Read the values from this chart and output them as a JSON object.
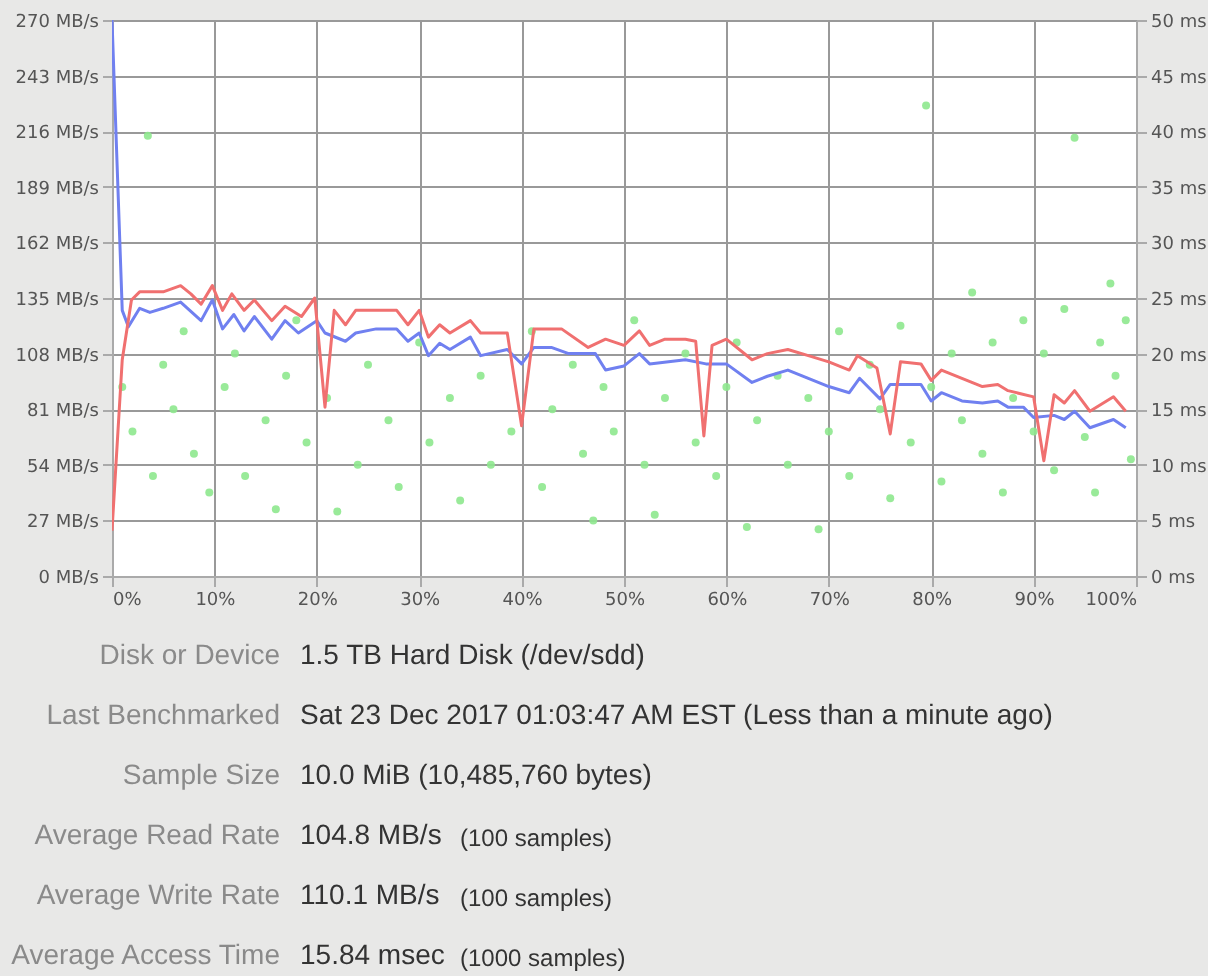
{
  "chart_data": {
    "type": "line",
    "xlim": [
      0,
      100
    ],
    "xticks": [
      {
        "value": 0,
        "label": "0%"
      },
      {
        "value": 10,
        "label": "10%"
      },
      {
        "value": 20,
        "label": "20%"
      },
      {
        "value": 30,
        "label": "30%"
      },
      {
        "value": 40,
        "label": "40%"
      },
      {
        "value": 50,
        "label": "50%"
      },
      {
        "value": 60,
        "label": "60%"
      },
      {
        "value": 70,
        "label": "70%"
      },
      {
        "value": 80,
        "label": "80%"
      },
      {
        "value": 90,
        "label": "90%"
      },
      {
        "value": 100,
        "label": "100%"
      }
    ],
    "ylim": [
      0,
      270
    ],
    "yticks": [
      {
        "value": 0,
        "label": "0 MB/s"
      },
      {
        "value": 27,
        "label": "27 MB/s"
      },
      {
        "value": 54,
        "label": "54 MB/s"
      },
      {
        "value": 81,
        "label": "81 MB/s"
      },
      {
        "value": 108,
        "label": "108 MB/s"
      },
      {
        "value": 135,
        "label": "135 MB/s"
      },
      {
        "value": 162,
        "label": "162 MB/s"
      },
      {
        "value": 189,
        "label": "189 MB/s"
      },
      {
        "value": 216,
        "label": "216 MB/s"
      },
      {
        "value": 243,
        "label": "243 MB/s"
      },
      {
        "value": 270,
        "label": "270 MB/s"
      }
    ],
    "y2lim": [
      0,
      50
    ],
    "y2ticks": [
      {
        "value": 0,
        "label": "0 ms"
      },
      {
        "value": 5,
        "label": "5 ms"
      },
      {
        "value": 10,
        "label": "10 ms"
      },
      {
        "value": 15,
        "label": "15 ms"
      },
      {
        "value": 20,
        "label": "20 ms"
      },
      {
        "value": 25,
        "label": "25 ms"
      },
      {
        "value": 30,
        "label": "30 ms"
      },
      {
        "value": 35,
        "label": "35 ms"
      },
      {
        "value": 40,
        "label": "40 ms"
      },
      {
        "value": 45,
        "label": "45 ms"
      },
      {
        "value": 50,
        "label": "50 ms"
      }
    ],
    "grid": true,
    "line_style": "solid",
    "series": [
      {
        "type": "scatter",
        "axis": "y2",
        "color": "#8ee88e",
        "marker": "circle",
        "x": [
          3.5,
          79.5,
          94,
          97.5,
          1,
          2,
          4,
          5,
          6,
          7,
          8,
          9.5,
          11,
          12,
          13,
          15,
          16,
          17,
          18,
          19,
          21,
          22,
          24,
          25,
          27,
          28,
          30,
          31,
          33,
          34,
          36,
          37,
          39,
          41,
          42,
          43,
          45,
          46,
          47,
          48,
          49,
          51,
          52,
          53,
          54,
          56,
          57,
          59,
          60,
          61,
          62,
          63,
          65,
          66,
          68,
          69,
          70,
          71,
          72,
          74,
          75,
          76,
          77,
          78,
          80,
          81,
          82,
          83,
          84,
          85,
          86,
          87,
          88,
          89,
          90,
          91,
          92,
          93,
          95,
          96,
          96.5,
          98,
          99,
          99.5
        ],
        "values": [
          39.6,
          42.3,
          39.4,
          26.3,
          17,
          13,
          9,
          19,
          15,
          22,
          11,
          7.5,
          17,
          20,
          9,
          14,
          6,
          18,
          23,
          12,
          16,
          5.8,
          10,
          19,
          14,
          8,
          21,
          12,
          16,
          6.8,
          18,
          10,
          13,
          22,
          8,
          15,
          19,
          11,
          5,
          17,
          13,
          23,
          10,
          5.5,
          16,
          20,
          12,
          9,
          17,
          21,
          4.4,
          14,
          18,
          10,
          16,
          4.2,
          13,
          22,
          9,
          19,
          15,
          7,
          22.5,
          12,
          17,
          8.5,
          20,
          14,
          25.5,
          11,
          21,
          7.5,
          16,
          23,
          13,
          20,
          9.5,
          24,
          12.5,
          7.5,
          21,
          18,
          23,
          10.5
        ]
      },
      {
        "color": "#7080f0",
        "x": [
          0,
          1,
          1.6,
          2.7,
          3.7,
          5,
          6.7,
          8.7,
          9.8,
          10.8,
          11.9,
          12.9,
          13.9,
          15.6,
          16.9,
          18.2,
          20,
          20.8,
          22.8,
          23.8,
          25.8,
          27.8,
          28.9,
          30,
          30.9,
          32,
          33,
          35,
          36,
          38.6,
          40,
          41.2,
          42.9,
          44.6,
          47.2,
          48.2,
          50,
          51.5,
          52.5,
          56,
          58,
          60,
          62.5,
          64,
          66,
          68,
          70,
          72,
          73,
          75,
          76,
          79,
          80,
          81,
          83,
          85,
          86.5,
          87.5,
          89,
          90,
          92,
          93,
          94,
          95.5,
          97.8,
          99
        ],
        "values": [
          270,
          129,
          121,
          130,
          128,
          130,
          133,
          124,
          134,
          120,
          127,
          119,
          126,
          115,
          124,
          118,
          124,
          118,
          114,
          118,
          120,
          120,
          114,
          118,
          107,
          113,
          110,
          116,
          107,
          110,
          103,
          111,
          111,
          108,
          108,
          100,
          102,
          108,
          103,
          105,
          103,
          103,
          94,
          97,
          100,
          96,
          92,
          89,
          96,
          86,
          93,
          93,
          85,
          89,
          85,
          84,
          85,
          82,
          82,
          77,
          78,
          76,
          80,
          72,
          76,
          72
        ]
      },
      {
        "color": "#f07070",
        "x": [
          0,
          1,
          1.9,
          2.7,
          5,
          6.7,
          7.7,
          8.7,
          9.8,
          10.8,
          11.7,
          12.9,
          13.9,
          15.6,
          16.9,
          18.5,
          19.8,
          20.8,
          21.7,
          22.8,
          23.8,
          27.8,
          28.9,
          30,
          30.9,
          32,
          33,
          35,
          36,
          38.6,
          40,
          41.2,
          43.9,
          46.5,
          48.2,
          50,
          51.5,
          52.5,
          54,
          56,
          57,
          57.8,
          58.6,
          60,
          62.5,
          64,
          66,
          68,
          70,
          72,
          72.8,
          74.7,
          76,
          77,
          79,
          80,
          81,
          83,
          85,
          86.5,
          87.5,
          90,
          91,
          92,
          93,
          94,
          95.5,
          97.8,
          99
        ],
        "values": [
          22,
          105,
          134,
          138,
          138,
          141,
          137,
          132,
          141,
          129,
          137,
          129,
          134,
          124,
          131,
          126,
          135,
          82,
          129,
          122,
          129,
          129,
          122,
          129,
          116,
          122,
          118,
          124,
          118,
          118,
          73,
          120,
          120,
          111,
          115,
          112,
          119,
          112,
          115,
          115,
          114,
          68,
          112,
          115,
          105,
          108,
          110,
          107,
          104,
          100,
          107,
          101,
          69,
          104,
          103,
          95,
          100,
          96,
          92,
          93,
          90,
          87,
          56,
          88,
          84,
          90,
          80,
          87,
          80
        ]
      }
    ],
    "annotations": [
      "Disk or Device",
      "1.5 TB Hard Disk (/dev/sdd)",
      "Last Benchmarked",
      "Sat 23 Dec 2017 01:03:47 AM EST (Less than a minute ago)",
      "Sample Size",
      "10.0 MiB (10,485,760 bytes)",
      "Average Read Rate",
      "104.8 MB/s",
      "(100 samples)",
      "Average Write Rate",
      "110.1 MB/s",
      "(100 samples)",
      "Average Access Time",
      "15.84 msec",
      "(1000 samples)"
    ]
  }
}
